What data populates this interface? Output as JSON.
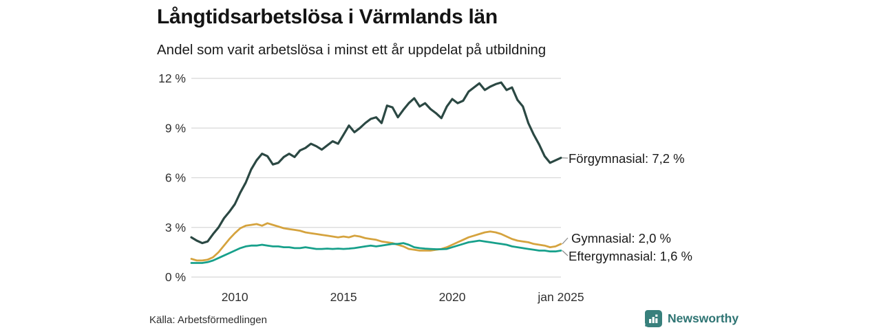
{
  "header": {
    "title": "Långtidsarbetslösa i Värmlands län",
    "subtitle": "Andel som varit arbetslösa i minst ett år uppdelat på utbildning"
  },
  "footer": {
    "source": "Källa: Arbetsförmedlingen",
    "brand": "Newsworthy"
  },
  "colors": {
    "grid": "#d8d8d8",
    "axis_text": "#303030",
    "connector": "#8f8f8f",
    "brand_teal": "#2e7473",
    "series_forgymnasial": "#2b4843",
    "series_gymnasial": "#d5a33e",
    "series_eftergymnasial": "#17a08b"
  },
  "chart_data": {
    "type": "line",
    "title": "Långtidsarbetslösa i Värmlands län",
    "subtitle": "Andel som varit arbetslösa i minst ett år uppdelat på utbildning",
    "source": "Källa: Arbetsförmedlingen",
    "grid": "horizontal",
    "legend_position": "right-end-labels",
    "ylim": [
      0,
      12
    ],
    "yticks": [
      0,
      3,
      6,
      9,
      12
    ],
    "ytick_labels": [
      "0 %",
      "3 %",
      "6 %",
      "9 %",
      "12 %"
    ],
    "xlim": [
      2008,
      2025
    ],
    "xticks": [
      2010,
      2015,
      2020,
      2025
    ],
    "xtick_labels": [
      "2010",
      "2015",
      "2020",
      "jan 2025"
    ],
    "x_note": "quarterly estimates read from plot, years as decimals",
    "x": [
      2008,
      2008.25,
      2008.5,
      2008.75,
      2009,
      2009.25,
      2009.5,
      2009.75,
      2010,
      2010.25,
      2010.5,
      2010.75,
      2011,
      2011.25,
      2011.5,
      2011.75,
      2012,
      2012.25,
      2012.5,
      2012.75,
      2013,
      2013.25,
      2013.5,
      2013.75,
      2014,
      2014.25,
      2014.5,
      2014.75,
      2015,
      2015.25,
      2015.5,
      2015.75,
      2016,
      2016.25,
      2016.5,
      2016.75,
      2017,
      2017.25,
      2017.5,
      2017.75,
      2018,
      2018.25,
      2018.5,
      2018.75,
      2019,
      2019.25,
      2019.5,
      2019.75,
      2020,
      2020.25,
      2020.5,
      2020.75,
      2021,
      2021.25,
      2021.5,
      2021.75,
      2022,
      2022.25,
      2022.5,
      2022.75,
      2023,
      2023.25,
      2023.5,
      2023.75,
      2024,
      2024.25,
      2024.5,
      2024.75,
      2025
    ],
    "series": [
      {
        "name": "Förgymnasial",
        "end_label": "Förgymnasial: 7,2 %",
        "final_value": 7.2,
        "color": "#2b4843",
        "values": [
          2.4,
          2.2,
          2.05,
          2.15,
          2.6,
          3.0,
          3.55,
          3.95,
          4.4,
          5.1,
          5.7,
          6.5,
          7.05,
          7.45,
          7.3,
          6.8,
          6.9,
          7.25,
          7.45,
          7.25,
          7.65,
          7.8,
          8.05,
          7.9,
          7.7,
          7.95,
          8.2,
          8.05,
          8.6,
          9.15,
          8.75,
          9.0,
          9.3,
          9.55,
          9.65,
          9.3,
          10.35,
          10.25,
          9.65,
          10.1,
          10.5,
          10.8,
          10.3,
          10.5,
          10.15,
          9.9,
          9.6,
          10.3,
          10.75,
          10.5,
          10.65,
          11.2,
          11.45,
          11.7,
          11.3,
          11.5,
          11.65,
          11.75,
          11.3,
          11.45,
          10.7,
          10.3,
          9.3,
          8.6,
          8.0,
          7.3,
          6.9,
          7.05,
          7.2
        ]
      },
      {
        "name": "Gymnasial",
        "end_label": "Gymnasial: 2,0 %",
        "final_value": 2.0,
        "color": "#d5a33e",
        "values": [
          1.1,
          1.0,
          1.0,
          1.05,
          1.2,
          1.5,
          1.9,
          2.3,
          2.65,
          2.95,
          3.1,
          3.15,
          3.2,
          3.1,
          3.25,
          3.15,
          3.05,
          2.95,
          2.9,
          2.85,
          2.8,
          2.7,
          2.65,
          2.6,
          2.55,
          2.5,
          2.45,
          2.4,
          2.45,
          2.4,
          2.5,
          2.45,
          2.35,
          2.3,
          2.25,
          2.15,
          2.1,
          2.05,
          1.95,
          1.85,
          1.7,
          1.65,
          1.6,
          1.6,
          1.6,
          1.65,
          1.7,
          1.8,
          1.95,
          2.1,
          2.25,
          2.4,
          2.5,
          2.6,
          2.7,
          2.75,
          2.7,
          2.6,
          2.45,
          2.3,
          2.2,
          2.15,
          2.1,
          2.0,
          1.95,
          1.9,
          1.8,
          1.85,
          2.0
        ]
      },
      {
        "name": "Eftergymnasial",
        "end_label": "Eftergymnasial: 1,6 %",
        "final_value": 1.6,
        "color": "#17a08b",
        "values": [
          0.85,
          0.85,
          0.85,
          0.9,
          1.0,
          1.15,
          1.3,
          1.45,
          1.6,
          1.75,
          1.85,
          1.9,
          1.9,
          1.95,
          1.9,
          1.85,
          1.85,
          1.8,
          1.8,
          1.75,
          1.75,
          1.8,
          1.75,
          1.7,
          1.7,
          1.72,
          1.7,
          1.72,
          1.7,
          1.72,
          1.75,
          1.8,
          1.85,
          1.9,
          1.85,
          1.9,
          1.95,
          2.0,
          2.0,
          2.05,
          1.95,
          1.8,
          1.75,
          1.72,
          1.7,
          1.68,
          1.68,
          1.7,
          1.8,
          1.9,
          2.0,
          2.1,
          2.15,
          2.2,
          2.15,
          2.1,
          2.05,
          2.0,
          1.95,
          1.85,
          1.8,
          1.75,
          1.7,
          1.65,
          1.6,
          1.6,
          1.55,
          1.55,
          1.6
        ]
      }
    ]
  }
}
